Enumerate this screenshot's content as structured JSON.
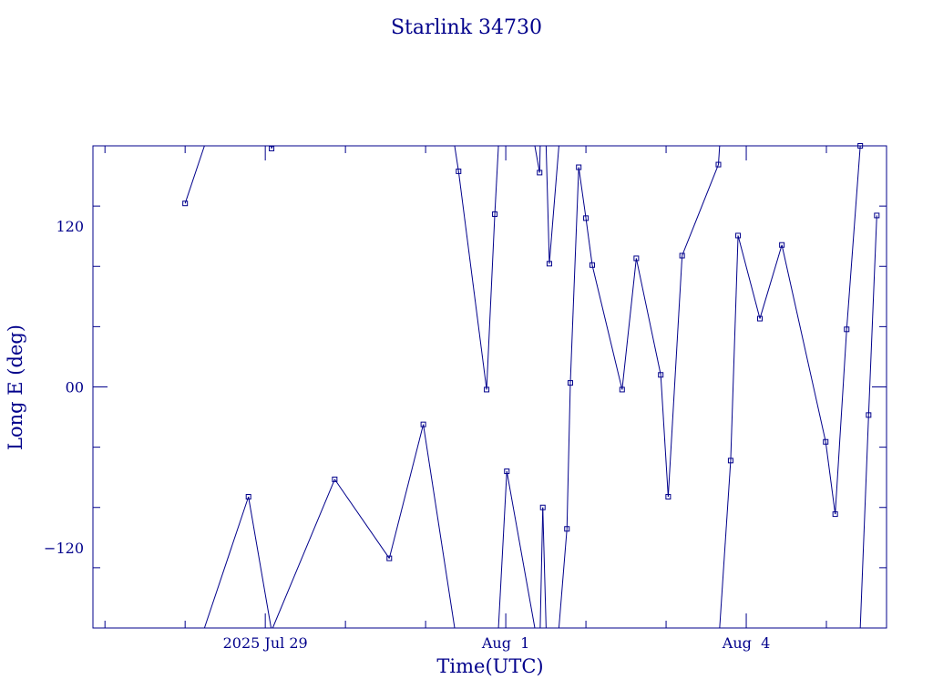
{
  "chart_data": {
    "type": "line",
    "title": "Starlink 34730",
    "xlabel": "Time(UTC)",
    "ylabel": "Long E (deg)",
    "x_range": [
      "2025-07-26T20:24",
      "2025-08-05T18:00"
    ],
    "ylim": [
      -180,
      180
    ],
    "x_ticks": [
      {
        "t": "2025-07-29T00:00",
        "label": "2025 Jul 29"
      },
      {
        "t": "2025-08-01T00:00",
        "label": "Aug  1"
      },
      {
        "t": "2025-08-04T00:00",
        "label": "Aug  4"
      }
    ],
    "y_ticks": [
      {
        "v": 120,
        "label": "120"
      },
      {
        "v": 0,
        "label": "00"
      },
      {
        "v": -120,
        "label": "−120"
      }
    ],
    "grid": false,
    "color": "#00008b",
    "marker": "square",
    "series": [
      {
        "points": [
          [
            "2025-07-28T00:00",
            137
          ],
          [
            "2025-07-28T18:58",
            -82
          ],
          [
            "2025-07-29T01:53",
            178
          ],
          [
            "2025-07-29T20:47",
            -69
          ],
          [
            "2025-07-30T13:08",
            -128
          ],
          [
            "2025-07-30T23:19",
            -28
          ],
          [
            "2025-07-31T09:52",
            161
          ],
          [
            "2025-07-31T18:16",
            -2
          ],
          [
            "2025-07-31T20:43",
            129
          ],
          [
            "2025-08-01T00:19",
            -63
          ],
          [
            "2025-08-01T10:08",
            160
          ],
          [
            "2025-08-01T11:05",
            -90
          ],
          [
            "2025-08-01T13:03",
            92
          ],
          [
            "2025-08-01T18:19",
            -106
          ],
          [
            "2025-08-01T19:20",
            3
          ],
          [
            "2025-08-01T21:51",
            164
          ],
          [
            "2025-08-02T00:00",
            126
          ],
          [
            "2025-08-02T01:53",
            91
          ],
          [
            "2025-08-02T10:50",
            -2
          ],
          [
            "2025-08-02T15:05",
            96
          ],
          [
            "2025-08-02T22:24",
            9
          ],
          [
            "2025-08-03T00:38",
            -82
          ],
          [
            "2025-08-03T04:48",
            98
          ],
          [
            "2025-08-03T15:40",
            166
          ],
          [
            "2025-08-03T19:20",
            -55
          ],
          [
            "2025-08-03T21:33",
            113
          ],
          [
            "2025-08-04T04:05",
            51
          ],
          [
            "2025-08-04T10:40",
            106
          ],
          [
            "2025-08-04T23:47",
            -41
          ],
          [
            "2025-08-05T02:38",
            -95
          ],
          [
            "2025-08-05T06:04",
            43
          ],
          [
            "2025-08-05T10:08",
            180
          ],
          [
            "2025-08-05T12:38",
            -21
          ],
          [
            "2025-08-05T15:05",
            128
          ]
        ]
      }
    ]
  }
}
